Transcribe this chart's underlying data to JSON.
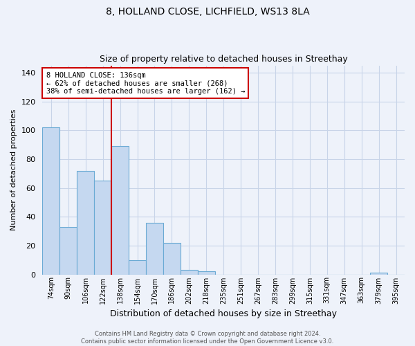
{
  "title1": "8, HOLLAND CLOSE, LICHFIELD, WS13 8LA",
  "title2": "Size of property relative to detached houses in Streethay",
  "xlabel": "Distribution of detached houses by size in Streethay",
  "ylabel": "Number of detached properties",
  "bar_labels": [
    "74sqm",
    "90sqm",
    "106sqm",
    "122sqm",
    "138sqm",
    "154sqm",
    "170sqm",
    "186sqm",
    "202sqm",
    "218sqm",
    "235sqm",
    "251sqm",
    "267sqm",
    "283sqm",
    "299sqm",
    "315sqm",
    "331sqm",
    "347sqm",
    "363sqm",
    "379sqm",
    "395sqm"
  ],
  "bar_values": [
    102,
    33,
    72,
    65,
    89,
    10,
    36,
    22,
    3,
    2,
    0,
    0,
    0,
    0,
    0,
    0,
    0,
    0,
    0,
    1,
    0
  ],
  "bar_color": "#c5d8f0",
  "bar_edge_color": "#6aaad4",
  "grid_color": "#c8d4e8",
  "background_color": "#eef2fa",
  "vline_color": "#cc0000",
  "annotation_line1": "8 HOLLAND CLOSE: 136sqm",
  "annotation_line2": "← 62% of detached houses are smaller (268)",
  "annotation_line3": "38% of semi-detached houses are larger (162) →",
  "annotation_box_color": "#ffffff",
  "annotation_box_edge": "#cc0000",
  "ylim": [
    0,
    145
  ],
  "yticks": [
    0,
    20,
    40,
    60,
    80,
    100,
    120,
    140
  ],
  "footer": "Contains HM Land Registry data © Crown copyright and database right 2024.\nContains public sector information licensed under the Open Government Licence v3.0.",
  "property_size_sqm": 136
}
